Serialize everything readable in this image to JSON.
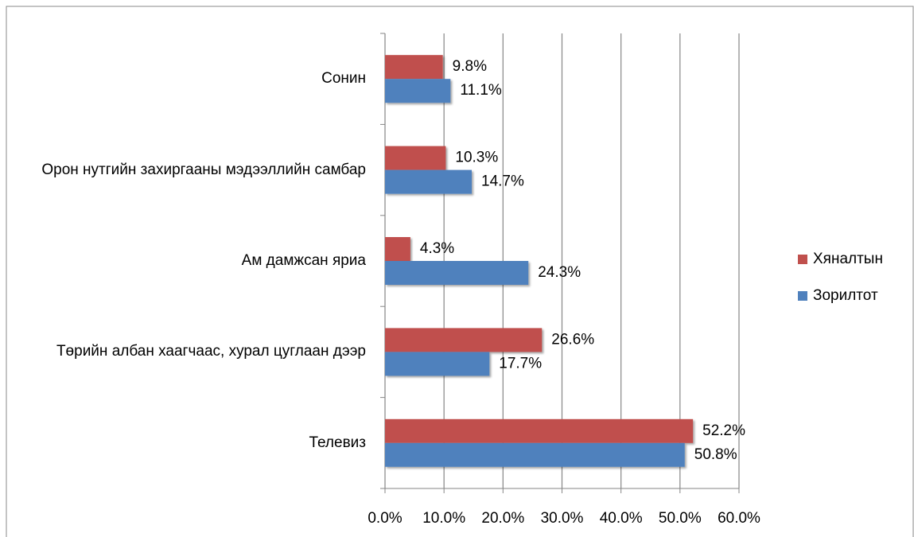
{
  "chart_data": {
    "type": "hbar",
    "categories": [
      "Сонин",
      "Орон нутгийн захиргааны мэдээллийн самбар",
      "Ам дамжсан яриа",
      "Төрийн албан хаагчаас, хурал цуглаан дээр",
      "Телевиз"
    ],
    "series": [
      {
        "name": "Хяналтын",
        "color": "#c0504d",
        "values": [
          9.8,
          10.3,
          4.3,
          26.6,
          52.2
        ],
        "value_labels": [
          "9.8%",
          "10.3%",
          "4.3%",
          "26.6%",
          "52.2%"
        ]
      },
      {
        "name": "Зорилтот",
        "color": "#4f81bd",
        "values": [
          11.1,
          14.7,
          24.3,
          17.7,
          50.8
        ],
        "value_labels": [
          "11.1%",
          "14.7%",
          "24.3%",
          "17.7%",
          "50.8%"
        ]
      }
    ],
    "xlim": [
      0,
      60
    ],
    "xticks": [
      {
        "value": 0,
        "label": "0.0%"
      },
      {
        "value": 10,
        "label": "10.0%"
      },
      {
        "value": 20,
        "label": "20.0%"
      },
      {
        "value": 30,
        "label": "30.0%"
      },
      {
        "value": 40,
        "label": "40.0%"
      },
      {
        "value": 50,
        "label": "50.0%"
      },
      {
        "value": 60,
        "label": "60.0%"
      }
    ],
    "grid": true,
    "legend": "right"
  }
}
